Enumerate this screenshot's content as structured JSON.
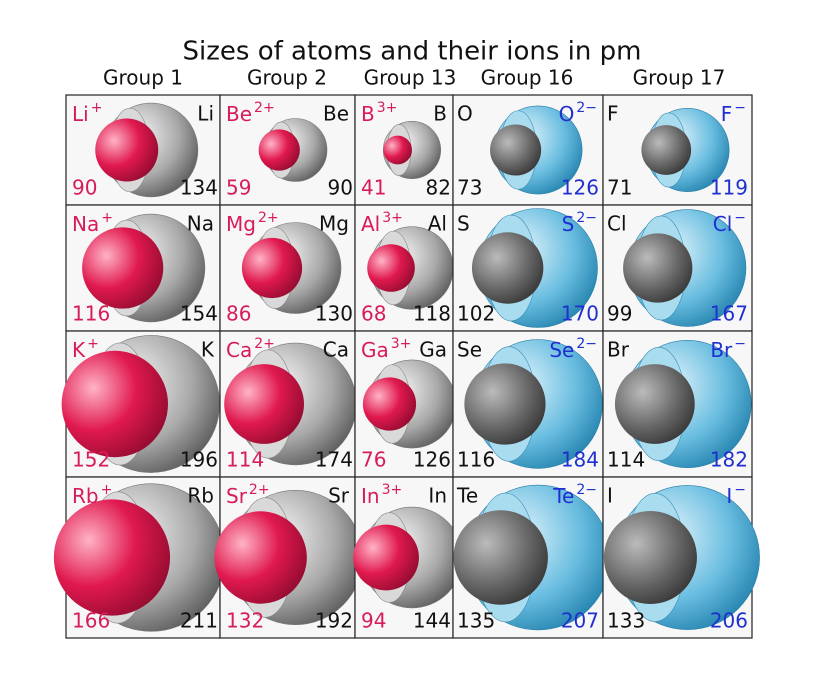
{
  "title": "Sizes of atoms and their ions in pm",
  "groups": [
    "Group 1",
    "Group 2",
    "Group 13",
    "Group 16",
    "Group 17"
  ],
  "rows": [
    [
      {
        "ion": "Li",
        "charge": "+",
        "atom": "Li",
        "ion_radius": 90,
        "atom_radius": 134
      },
      {
        "ion": "Be",
        "charge": "2+",
        "atom": "Be",
        "ion_radius": 59,
        "atom_radius": 90
      },
      {
        "ion": "B",
        "charge": "3+",
        "atom": "B",
        "ion_radius": 41,
        "atom_radius": 82
      },
      {
        "ion": "O",
        "charge": "2−",
        "atom": "O",
        "ion_radius": 126,
        "atom_radius": 73
      },
      {
        "ion": "F",
        "charge": "−",
        "atom": "F",
        "ion_radius": 119,
        "atom_radius": 71
      }
    ],
    [
      {
        "ion": "Na",
        "charge": "+",
        "atom": "Na",
        "ion_radius": 116,
        "atom_radius": 154
      },
      {
        "ion": "Mg",
        "charge": "2+",
        "atom": "Mg",
        "ion_radius": 86,
        "atom_radius": 130
      },
      {
        "ion": "Al",
        "charge": "3+",
        "atom": "Al",
        "ion_radius": 68,
        "atom_radius": 118
      },
      {
        "ion": "S",
        "charge": "2−",
        "atom": "S",
        "ion_radius": 170,
        "atom_radius": 102
      },
      {
        "ion": "Cl",
        "charge": "−",
        "atom": "Cl",
        "ion_radius": 167,
        "atom_radius": 99
      }
    ],
    [
      {
        "ion": "K",
        "charge": "+",
        "atom": "K",
        "ion_radius": 152,
        "atom_radius": 196
      },
      {
        "ion": "Ca",
        "charge": "2+",
        "atom": "Ca",
        "ion_radius": 114,
        "atom_radius": 174
      },
      {
        "ion": "Ga",
        "charge": "3+",
        "atom": "Ga",
        "ion_radius": 76,
        "atom_radius": 126
      },
      {
        "ion": "Se",
        "charge": "2−",
        "atom": "Se",
        "ion_radius": 184,
        "atom_radius": 116
      },
      {
        "ion": "Br",
        "charge": "−",
        "atom": "Br",
        "ion_radius": 182,
        "atom_radius": 114
      }
    ],
    [
      {
        "ion": "Rb",
        "charge": "+",
        "atom": "Rb",
        "ion_radius": 166,
        "atom_radius": 211
      },
      {
        "ion": "Sr",
        "charge": "2+",
        "atom": "Sr",
        "ion_radius": 132,
        "atom_radius": 192
      },
      {
        "ion": "In",
        "charge": "3+",
        "atom": "In",
        "ion_radius": 94,
        "atom_radius": 144
      },
      {
        "ion": "Te",
        "charge": "2−",
        "atom": "Te",
        "ion_radius": 207,
        "atom_radius": 135
      },
      {
        "ion": "I",
        "charge": "−",
        "atom": "I",
        "ion_radius": 206,
        "atom_radius": 133
      }
    ]
  ]
}
